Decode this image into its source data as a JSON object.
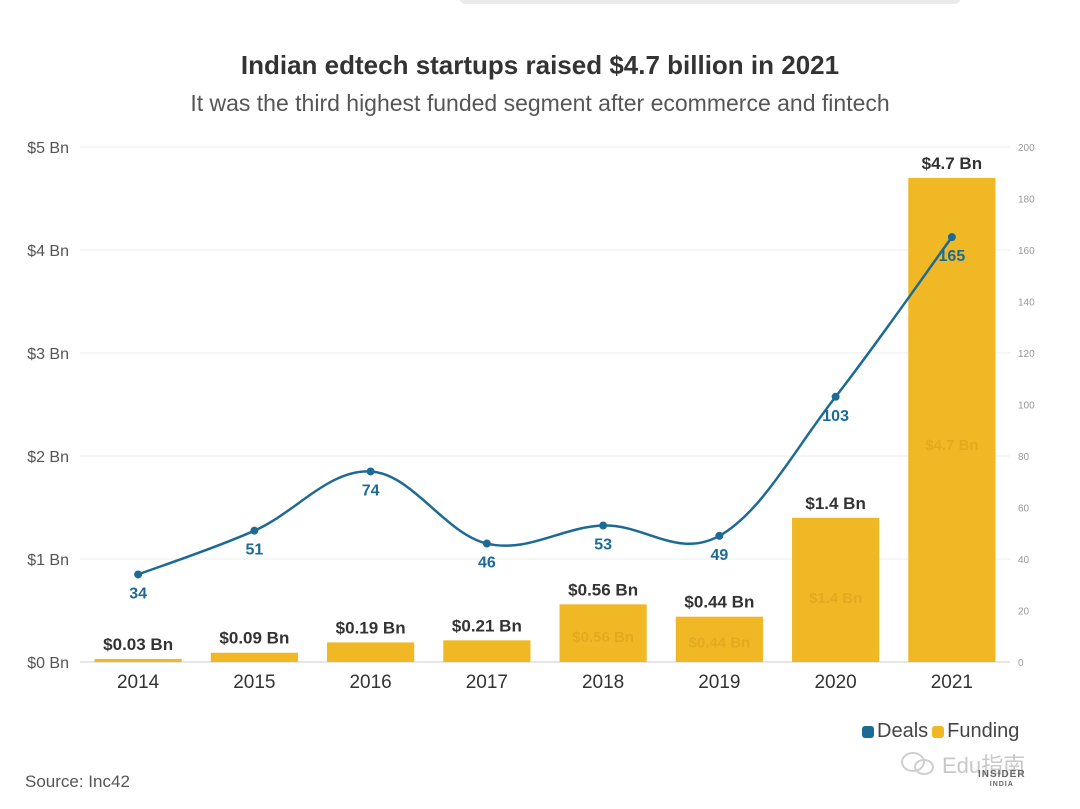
{
  "title": "Indian edtech startups raised $4.7 billion in 2021",
  "subtitle": "It was the third highest funded segment after ecommerce and fintech",
  "source": "Source: Inc42",
  "watermark": "Edu指南",
  "logo": {
    "line1": "INSIDER",
    "line2": "INDIA"
  },
  "colors": {
    "funding": "#f0b825",
    "deals": "#1d6b94",
    "grid": "#ececec"
  },
  "chart_data": {
    "type": "bar",
    "categories": [
      "2014",
      "2015",
      "2016",
      "2017",
      "2018",
      "2019",
      "2020",
      "2021"
    ],
    "series": [
      {
        "name": "Funding",
        "type": "bar",
        "axis": "left",
        "values": [
          0.03,
          0.09,
          0.19,
          0.21,
          0.56,
          0.44,
          1.4,
          4.7
        ],
        "labels": [
          "$0.03 Bn",
          "$0.09 Bn",
          "$0.19 Bn",
          "$0.21 Bn",
          "$0.56 Bn",
          "$0.44 Bn",
          "$1.4 Bn",
          "$4.7 Bn"
        ]
      },
      {
        "name": "Deals",
        "type": "line",
        "axis": "right",
        "values": [
          34,
          51,
          74,
          46,
          53,
          49,
          103,
          165
        ]
      }
    ],
    "y_left": {
      "ylim": [
        0,
        5
      ],
      "ticks": [
        0,
        1,
        2,
        3,
        4,
        5
      ],
      "tick_labels": [
        "$0 Bn",
        "$1 Bn",
        "$2 Bn",
        "$3 Bn",
        "$4 Bn",
        "$5 Bn"
      ]
    },
    "y_right": {
      "ylim": [
        0,
        200
      ],
      "ticks": [
        0,
        20,
        40,
        60,
        80,
        100,
        120,
        140,
        160,
        180,
        200
      ],
      "tick_labels": [
        "0",
        "20",
        "40",
        "60",
        "80",
        "100",
        "120",
        "140",
        "160",
        "180",
        "200"
      ]
    },
    "grid": true,
    "legend": {
      "position": "bottom-right",
      "items": [
        "Deals",
        "Funding"
      ]
    }
  }
}
